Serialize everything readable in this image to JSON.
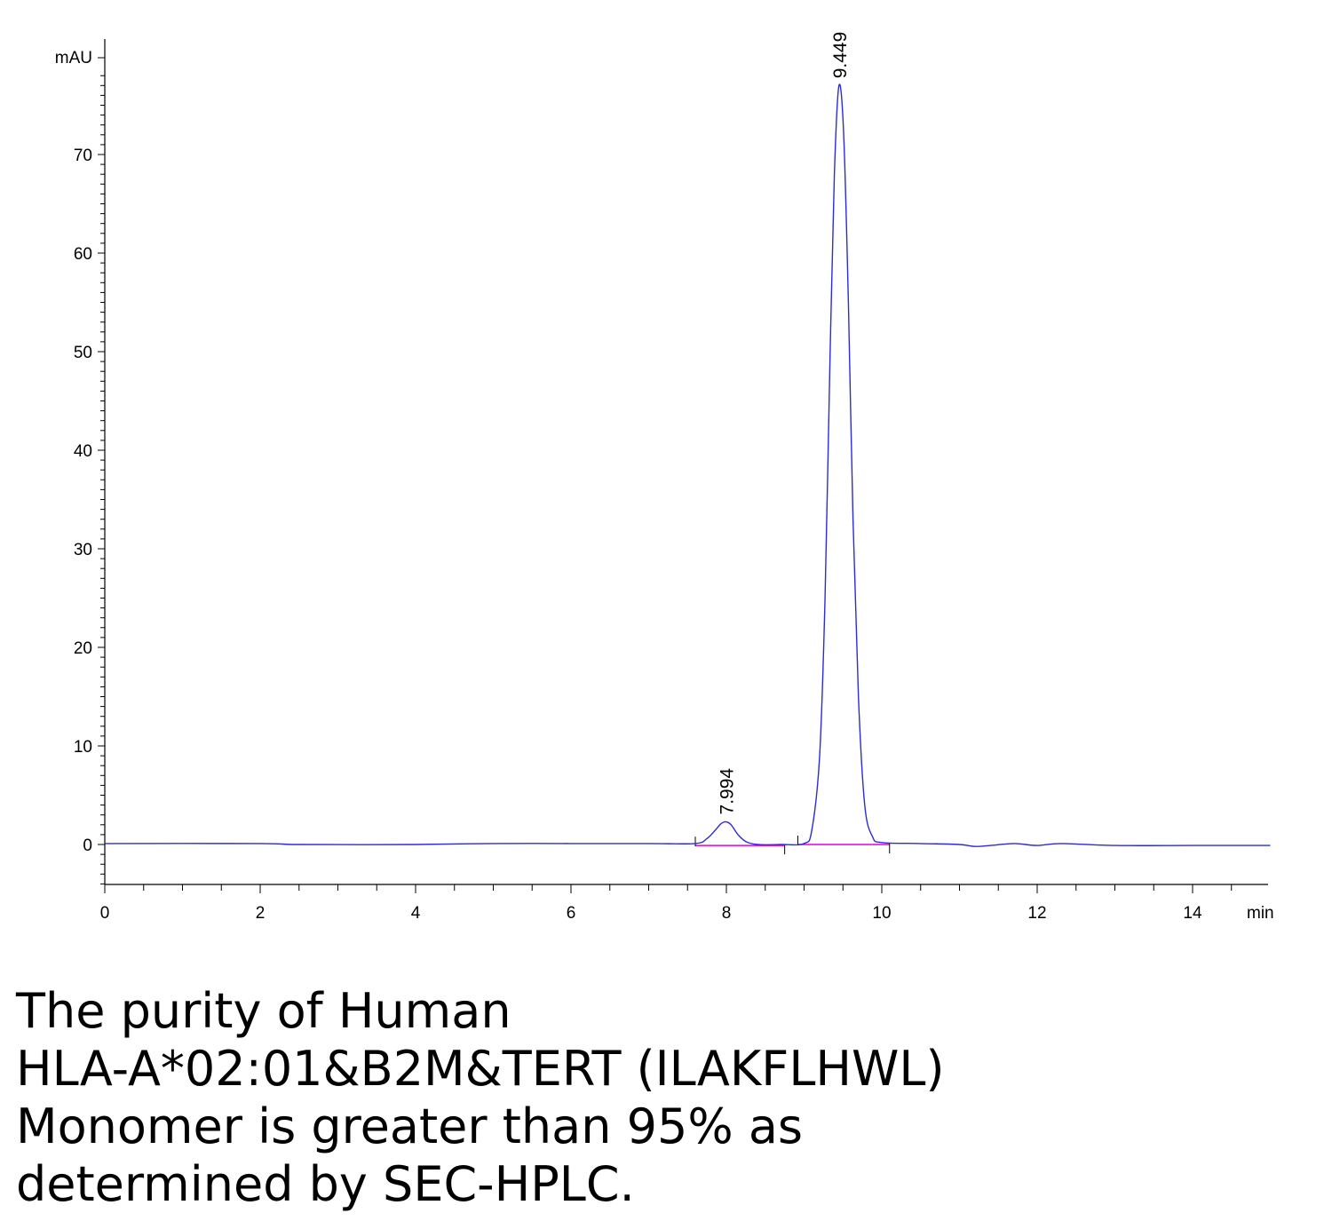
{
  "chart_data": {
    "type": "line",
    "title": "",
    "xlabel": "",
    "ylabel": "",
    "x_unit": "min",
    "y_unit": "mAU",
    "xlim": [
      0,
      15
    ],
    "ylim": [
      -4,
      80
    ],
    "x_ticks": [
      "0",
      "2",
      "4",
      "6",
      "8",
      "10",
      "12",
      "14"
    ],
    "y_ticks": [
      "0",
      "10",
      "20",
      "30",
      "40",
      "50",
      "60",
      "70"
    ],
    "grid": false,
    "series": [
      {
        "color": "#2b2bdc",
        "x": [
          0,
          2,
          2.5,
          4,
          5,
          6,
          7,
          7.6,
          7.75,
          7.85,
          7.93,
          7.994,
          8.06,
          8.15,
          8.25,
          8.4,
          8.7,
          9.0,
          9.1,
          9.2,
          9.27,
          9.33,
          9.39,
          9.449,
          9.51,
          9.57,
          9.63,
          9.7,
          9.78,
          9.88,
          10.0,
          10.5,
          11.0,
          11.2,
          11.4,
          11.7,
          12.0,
          12.3,
          13.0,
          14.0,
          15.0
        ],
        "y": [
          0.1,
          0.1,
          0.0,
          0.0,
          0.1,
          0.1,
          0.1,
          0.1,
          0.6,
          1.4,
          2.1,
          2.3,
          2.0,
          1.0,
          0.3,
          0.0,
          0.0,
          0.1,
          1.5,
          9.0,
          25.0,
          48.0,
          68.0,
          77.0,
          72.0,
          55.0,
          33.0,
          15.0,
          4.0,
          0.8,
          0.2,
          0.1,
          0.0,
          -0.2,
          -0.1,
          0.1,
          -0.1,
          0.1,
          -0.1,
          -0.1,
          -0.1
        ]
      }
    ],
    "baselines": [
      {
        "color": "#e000e0",
        "x": [
          7.6,
          8.75
        ],
        "y": [
          -0.1,
          -0.1
        ]
      },
      {
        "color": "#e000e0",
        "x": [
          8.92,
          10.1
        ],
        "y": [
          0.0,
          0.0
        ]
      }
    ],
    "peaks": [
      {
        "label": "7.994",
        "x": 7.994,
        "y": 2.3
      },
      {
        "label": "9.449",
        "x": 9.449,
        "y": 77.0
      }
    ]
  },
  "caption": {
    "lines": [
      "The purity of Human",
      "HLA-A*02:01&B2M&TERT (ILAKFLHWL)",
      "Monomer is greater than 95% as",
      "determined by SEC-HPLC."
    ]
  }
}
